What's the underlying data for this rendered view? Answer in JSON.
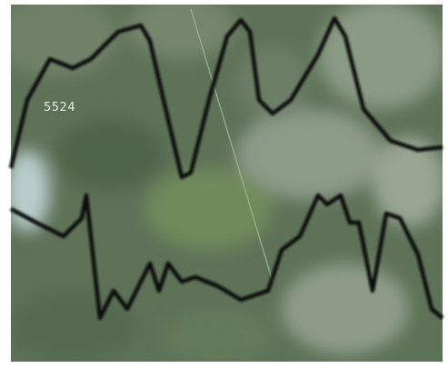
{
  "map": {
    "label": "5524"
  }
}
